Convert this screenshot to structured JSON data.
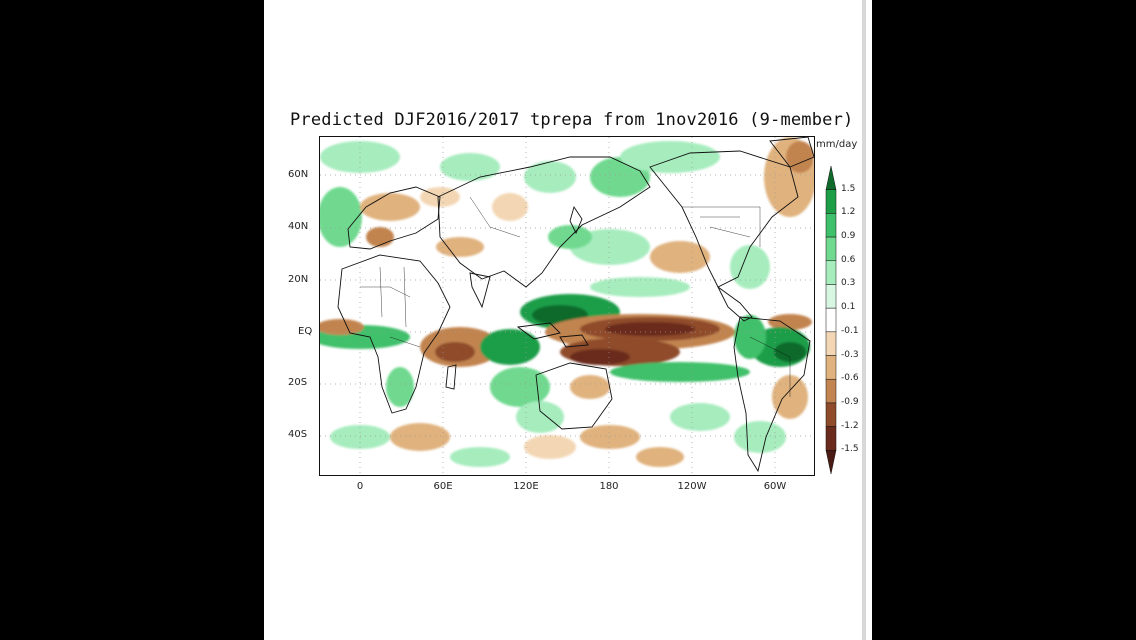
{
  "map": {
    "title": "Predicted DJF2016/2017 tprepa from 1nov2016 (9-member)",
    "unit": "mm/day",
    "lat_labels": [
      "60N",
      "40N",
      "20N",
      "EQ",
      "20S",
      "40S"
    ],
    "lon_labels": [
      "0",
      "60E",
      "120E",
      "180",
      "120W",
      "60W"
    ],
    "colorbar": {
      "levels": [
        "1.5",
        "1.2",
        "0.9",
        "0.6",
        "0.3",
        "0.1",
        "-0.1",
        "-0.3",
        "-0.6",
        "-0.9",
        "-1.2",
        "-1.5"
      ],
      "colors": [
        "#0e6b2c",
        "#1f9e48",
        "#3fc06a",
        "#6fd98f",
        "#a6ecbd",
        "#d8f7e2",
        "#ffffff",
        "#f3d7b4",
        "#e0b27e",
        "#c28450",
        "#8f4b2a",
        "#6a2a1c",
        "#4a1a14"
      ]
    }
  }
}
